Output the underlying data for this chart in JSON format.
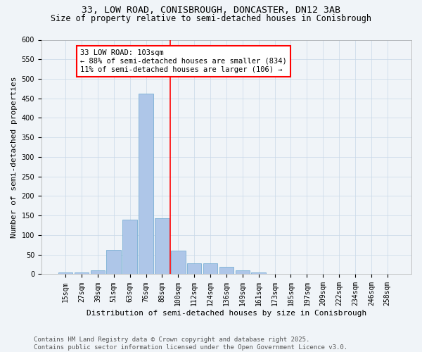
{
  "title_line1": "33, LOW ROAD, CONISBROUGH, DONCASTER, DN12 3AB",
  "title_line2": "Size of property relative to semi-detached houses in Conisbrough",
  "xlabel": "Distribution of semi-detached houses by size in Conisbrough",
  "ylabel": "Number of semi-detached properties",
  "bar_color": "#aec6e8",
  "bar_edge_color": "#7aafd4",
  "grid_color": "#c8d8e8",
  "background_color": "#f0f4f8",
  "categories": [
    "15sqm",
    "27sqm",
    "39sqm",
    "51sqm",
    "63sqm",
    "76sqm",
    "88sqm",
    "100sqm",
    "112sqm",
    "124sqm",
    "136sqm",
    "149sqm",
    "161sqm",
    "173sqm",
    "185sqm",
    "197sqm",
    "209sqm",
    "222sqm",
    "234sqm",
    "246sqm",
    "258sqm"
  ],
  "values": [
    5,
    4,
    10,
    62,
    140,
    463,
    144,
    60,
    27,
    27,
    18,
    10,
    5,
    1,
    1,
    0,
    0,
    1,
    0,
    0,
    1
  ],
  "ylim": [
    0,
    600
  ],
  "yticks": [
    0,
    50,
    100,
    150,
    200,
    250,
    300,
    350,
    400,
    450,
    500,
    550,
    600
  ],
  "property_label": "33 LOW ROAD: 103sqm",
  "percent_smaller": 88,
  "count_smaller": 834,
  "percent_larger": 11,
  "count_larger": 106,
  "vline_bin_index": 7,
  "footer_line1": "Contains HM Land Registry data © Crown copyright and database right 2025.",
  "footer_line2": "Contains public sector information licensed under the Open Government Licence v3.0.",
  "title_fontsize": 9.5,
  "subtitle_fontsize": 8.5,
  "axis_label_fontsize": 8,
  "tick_fontsize": 7,
  "annot_fontsize": 7.5,
  "footer_fontsize": 6.5
}
